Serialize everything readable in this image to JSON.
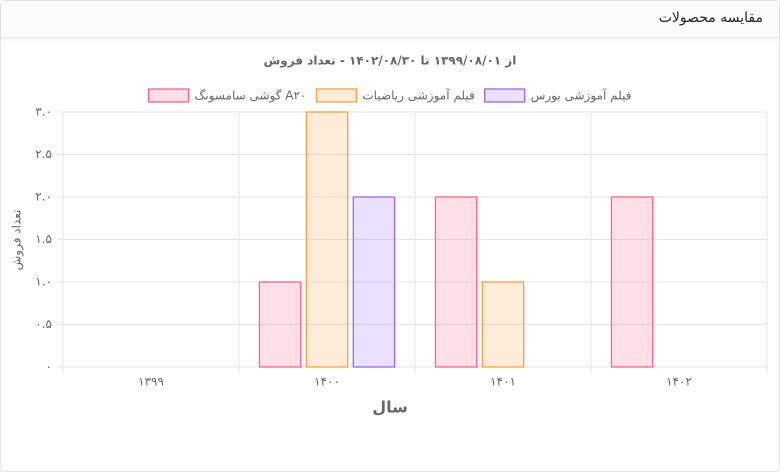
{
  "header": {
    "title": "مقایسه محصولات"
  },
  "chart_data": {
    "type": "bar",
    "title": "از ۱۳۹۹/۰۸/۰۱ تا ۱۴۰۲/۰۸/۳۰ - تعداد فروش",
    "x_label": "سال",
    "y_label": "تعداد فروش",
    "categories": [
      "۱۳۹۹",
      "۱۴۰۰",
      "۱۴۰۱",
      "۱۴۰۲"
    ],
    "series": [
      {
        "name": "گوشی سامسونگ A۲۰",
        "color": "#ff6384",
        "values": [
          0,
          1,
          2,
          2
        ]
      },
      {
        "name": "فیلم آموزشی ریاضیات",
        "color": "#ff9f40",
        "values": [
          0,
          3,
          1,
          0
        ]
      },
      {
        "name": "فیلم آموزشی بورس",
        "color": "#9966ff",
        "values": [
          0,
          2,
          0,
          0
        ]
      }
    ],
    "ylim": [
      0,
      3
    ],
    "yticks": [
      {
        "value": 0,
        "label": "۰"
      },
      {
        "value": 0.5,
        "label": "۰.۵"
      },
      {
        "value": 1,
        "label": "۱.۰"
      },
      {
        "value": 1.5,
        "label": "۱.۵"
      },
      {
        "value": 2,
        "label": "۲.۰"
      },
      {
        "value": 2.5,
        "label": "۲.۵"
      },
      {
        "value": 3,
        "label": "۳.۰"
      }
    ],
    "grid": true,
    "legend": "top"
  }
}
